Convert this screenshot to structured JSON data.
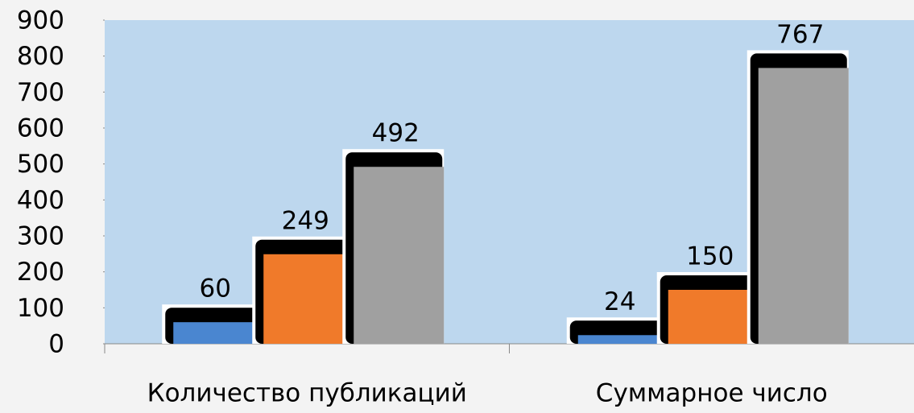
{
  "chart_data": {
    "type": "bar",
    "categories": [
      "Количество публикаций",
      "Суммарное число"
    ],
    "series": [
      {
        "color": "#4a86d0",
        "values": [
          60,
          24
        ]
      },
      {
        "color": "#f07a2a",
        "values": [
          249,
          150
        ]
      },
      {
        "color": "#a0a0a0",
        "values": [
          492,
          767
        ]
      }
    ],
    "ylim": [
      0,
      900
    ],
    "yticks": [
      0,
      100,
      200,
      300,
      400,
      500,
      600,
      700,
      800,
      900
    ],
    "data_labels": true
  }
}
